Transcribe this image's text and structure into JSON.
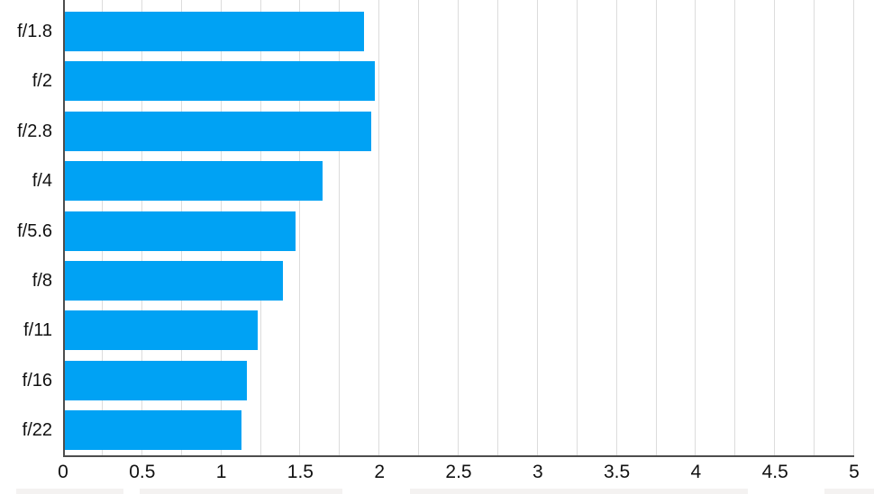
{
  "chart_data": {
    "type": "bar",
    "orientation": "horizontal",
    "title": "",
    "xlabel": "",
    "ylabel": "",
    "categories": [
      "f/1.8",
      "f/2",
      "f/2.8",
      "f/4",
      "f/5.6",
      "f/8",
      "f/11",
      "f/16",
      "f/22"
    ],
    "values": [
      1.9,
      1.97,
      1.95,
      1.64,
      1.47,
      1.39,
      1.23,
      1.16,
      1.13
    ],
    "xlim": [
      0,
      5
    ],
    "x_ticks": [
      0,
      0.5,
      1,
      1.5,
      2,
      2.5,
      3,
      3.5,
      4,
      4.5,
      5
    ],
    "gridline_step": 0.25,
    "grid": true,
    "legend_position": "none"
  },
  "colors": {
    "bar": "#00A2F4",
    "gridline": "#DCDCDC",
    "axis": "#4D4D4D",
    "tick_label": "#111111",
    "category_label": "#111111",
    "background": "#FFFFFF",
    "footer_artifact": "#F4F2F1"
  }
}
